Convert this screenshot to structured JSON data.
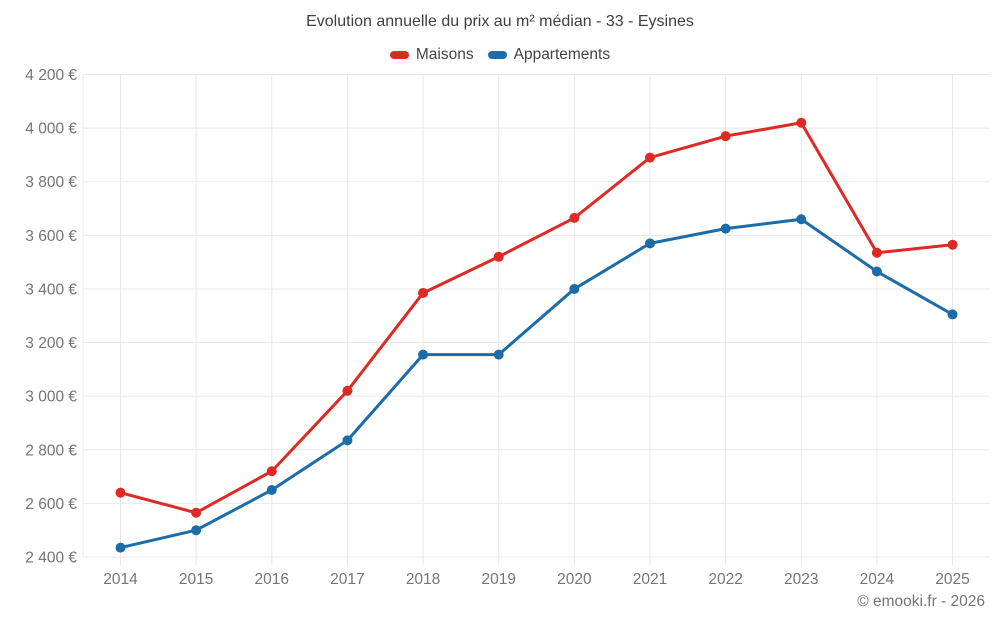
{
  "title": "Evolution annuelle du prix au m² médian - 33 - Eysines",
  "footer": {
    "credit": "© emooki.fr - 2026"
  },
  "colors": {
    "maisons": "#de2a25",
    "appartements": "#1b6ca8",
    "grid": "#e8e8e8",
    "axis_text": "#757575",
    "title_text": "#3f3f3f"
  },
  "chart_data": {
    "type": "line",
    "title": "Evolution annuelle du prix au m² médian - 33 - Eysines",
    "x": [
      2014,
      2015,
      2016,
      2017,
      2018,
      2019,
      2020,
      2021,
      2022,
      2023,
      2024,
      2025
    ],
    "series": [
      {
        "name": "Maisons",
        "color": "#de2a25",
        "values": [
          2640,
          2565,
          2720,
          3020,
          3385,
          3520,
          3665,
          3890,
          3970,
          4020,
          3535,
          3565
        ]
      },
      {
        "name": "Appartements",
        "color": "#1b6ca8",
        "values": [
          2435,
          2500,
          2650,
          2835,
          3155,
          3155,
          3400,
          3570,
          3625,
          3660,
          3465,
          3305
        ]
      }
    ],
    "ylim": [
      2400,
      4200
    ],
    "ytick_step": 200,
    "ytick_suffix": " €",
    "xlabel": "",
    "ylabel": "",
    "grid": true,
    "legend_position": "top",
    "marker": "circle"
  }
}
